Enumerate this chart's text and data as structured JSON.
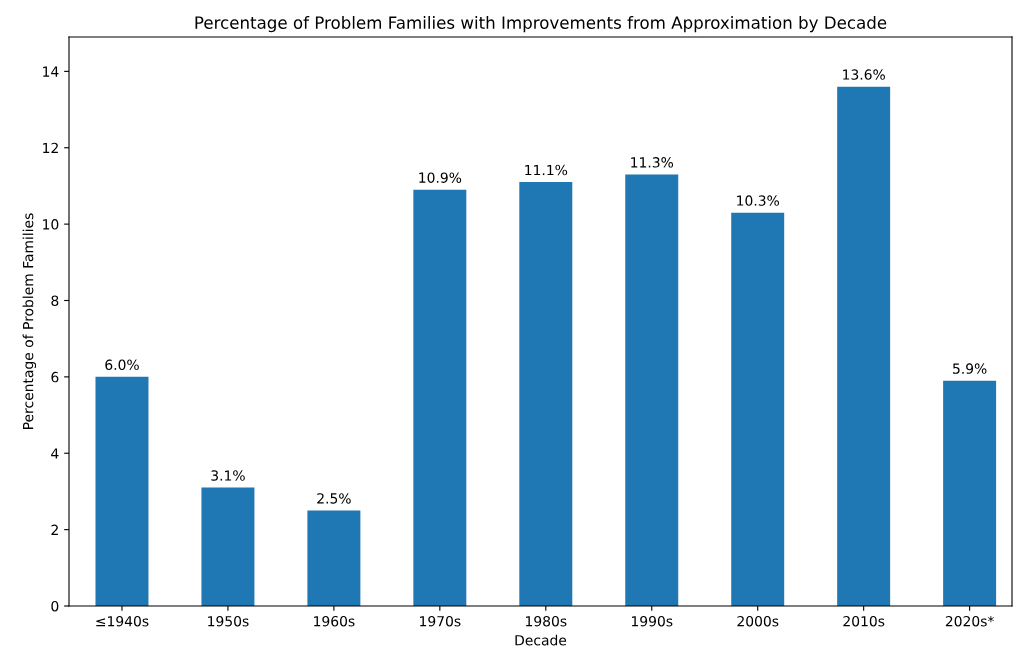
{
  "chart_data": {
    "type": "bar",
    "title": "Percentage of Problem Families with Improvements from Approximation by Decade",
    "xlabel": "Decade",
    "ylabel": "Percentage of Problem Families",
    "categories": [
      "≤1940s",
      "1950s",
      "1960s",
      "1970s",
      "1980s",
      "1990s",
      "2000s",
      "2010s",
      "2020s*"
    ],
    "values": [
      6.0,
      3.1,
      2.5,
      10.9,
      11.1,
      11.3,
      10.3,
      13.6,
      5.9
    ],
    "value_labels": [
      "6.0%",
      "3.1%",
      "2.5%",
      "10.9%",
      "11.1%",
      "11.3%",
      "10.3%",
      "13.6%",
      "5.9%"
    ],
    "color": "#1f77b4",
    "ylim": [
      0,
      14.9
    ],
    "yticks": [
      0,
      2,
      4,
      6,
      8,
      10,
      12,
      14
    ]
  }
}
